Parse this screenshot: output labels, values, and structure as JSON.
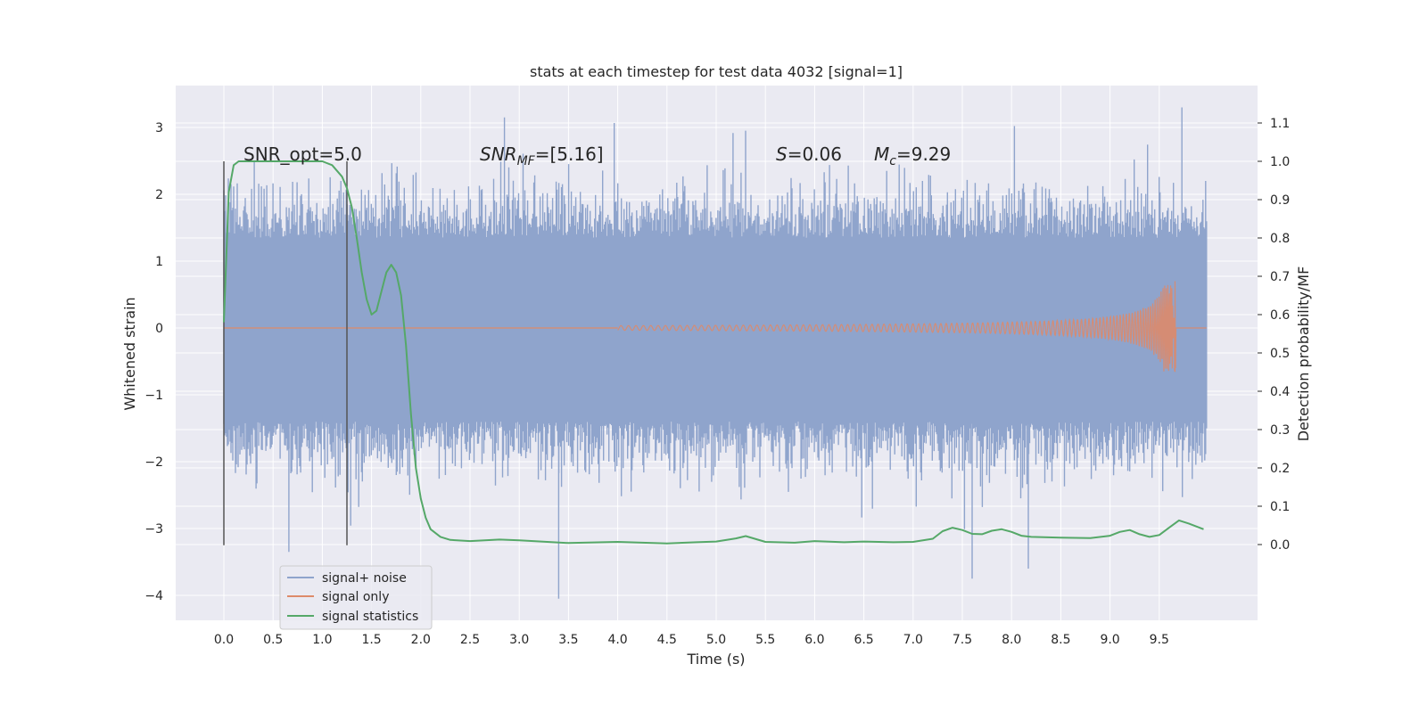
{
  "chart_data": {
    "type": "line",
    "title": "stats at each timestep for test data 4032 [signal=1]",
    "xlabel": "Time (s)",
    "ylabel_left": "Whitened strain",
    "ylabel_right": "Detection probability/MF",
    "xlim": [
      -0.5,
      10.5
    ],
    "ylim_left": [
      -4.4,
      3.6
    ],
    "ylim_right": [
      -0.2,
      1.2
    ],
    "x_ticks": [
      "0.0",
      "0.5",
      "1.0",
      "1.5",
      "2.0",
      "2.5",
      "3.0",
      "3.5",
      "4.0",
      "4.5",
      "5.0",
      "5.5",
      "6.0",
      "6.5",
      "7.0",
      "7.5",
      "8.0",
      "8.5",
      "9.0",
      "9.5"
    ],
    "y_ticks_left": [
      "3",
      "2",
      "1",
      "0",
      "−1",
      "−2",
      "−3",
      "−4"
    ],
    "y_ticks_right": [
      "1.1",
      "1.0",
      "0.9",
      "0.8",
      "0.7",
      "0.6",
      "0.5",
      "0.4",
      "0.3",
      "0.2",
      "0.1",
      "0.0"
    ],
    "annotations": {
      "snr_opt": "SNR_opt=5.0",
      "snr_mf_main": "SNR",
      "snr_mf_sub": "MF",
      "snr_mf_rest": "=[5.16]",
      "s_main": "S",
      "s_rest": "=0.06",
      "mc_main": "M",
      "mc_sub": "c",
      "mc_rest": "=9.29"
    },
    "vlines_x": [
      0.0,
      1.25
    ],
    "legend": {
      "placement": "lower-left",
      "entries": [
        "signal+ noise",
        "signal only",
        "signal statistics"
      ]
    },
    "grid": true,
    "colors": {
      "noise": "#8fa4cc",
      "signal": "#dd8a6a",
      "stats": "#55a868",
      "background": "#eaeaf2",
      "grid": "#ffffff",
      "vline": "#555555"
    },
    "series": [
      {
        "name": "signal statistics",
        "axis": "right",
        "x": [
          0.0,
          0.05,
          0.1,
          0.15,
          0.2,
          0.3,
          0.5,
          0.7,
          0.9,
          1.0,
          1.1,
          1.2,
          1.25,
          1.3,
          1.35,
          1.4,
          1.45,
          1.5,
          1.55,
          1.6,
          1.65,
          1.7,
          1.75,
          1.8,
          1.85,
          1.9,
          1.95,
          2.0,
          2.05,
          2.1,
          2.2,
          2.3,
          2.5,
          2.8,
          3.0,
          3.5,
          4.0,
          4.5,
          4.8,
          5.0,
          5.2,
          5.3,
          5.5,
          5.8,
          6.0,
          6.3,
          6.5,
          6.8,
          7.0,
          7.2,
          7.3,
          7.4,
          7.5,
          7.6,
          7.7,
          7.8,
          7.9,
          8.0,
          8.1,
          8.2,
          8.5,
          8.8,
          9.0,
          9.1,
          9.2,
          9.3,
          9.4,
          9.5,
          9.6,
          9.7,
          9.8,
          9.95
        ],
        "values": [
          0.58,
          0.92,
          0.99,
          1.0,
          1.0,
          1.0,
          1.0,
          1.0,
          1.0,
          1.0,
          0.99,
          0.96,
          0.93,
          0.88,
          0.8,
          0.71,
          0.64,
          0.6,
          0.61,
          0.66,
          0.71,
          0.73,
          0.71,
          0.65,
          0.52,
          0.34,
          0.2,
          0.12,
          0.07,
          0.04,
          0.02,
          0.012,
          0.009,
          0.013,
          0.011,
          0.004,
          0.007,
          0.003,
          0.006,
          0.008,
          0.016,
          0.022,
          0.007,
          0.005,
          0.009,
          0.006,
          0.008,
          0.006,
          0.007,
          0.015,
          0.035,
          0.044,
          0.038,
          0.028,
          0.027,
          0.036,
          0.04,
          0.033,
          0.023,
          0.02,
          0.018,
          0.017,
          0.023,
          0.033,
          0.038,
          0.027,
          0.02,
          0.025,
          0.044,
          0.063,
          0.055,
          0.04
        ]
      },
      {
        "name": "signal only",
        "axis": "left",
        "description_free_chirp": true,
        "chirp_start": 4.0,
        "chirp_end": 9.66,
        "peak_amplitude": [
          0.7,
          -0.6
        ]
      },
      {
        "name": "signal+ noise",
        "axis": "left",
        "x_range": [
          0.0,
          9.98
        ],
        "band_typical": [
          -1.4,
          1.35
        ],
        "extremes": [
          3.3,
          -4.05
        ]
      }
    ]
  }
}
